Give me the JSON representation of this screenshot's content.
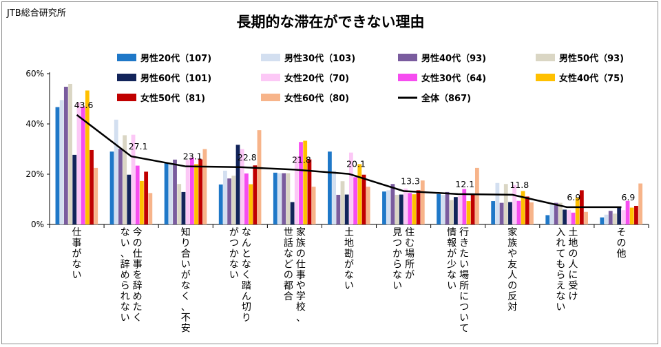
{
  "credit": "JTB総合研究所",
  "chart_data": {
    "type": "bar",
    "title": "長期的な滞在ができない理由",
    "ylim": [
      0,
      60
    ],
    "yticks": [
      "0%",
      "20%",
      "40%",
      "60%"
    ],
    "grid": false,
    "legend_position": "top",
    "categories": [
      [
        "仕事がない"
      ],
      [
        "今の仕事を辞めたく",
        "ない、辞められない"
      ],
      [
        "知り合いがなく、不安"
      ],
      [
        "なんとなく踏ん切り",
        "がつかない"
      ],
      [
        "家族の仕事や学校、",
        "世話などの都合"
      ],
      [
        "土地勘がない"
      ],
      [
        "住む場所が",
        "見つからない"
      ],
      [
        "行きたい場所について",
        "情報が少ない"
      ],
      [
        "家族や友人の反対"
      ],
      [
        "土地の人に受け",
        "入れてもらえない"
      ],
      [
        "その他"
      ]
    ],
    "series": [
      {
        "name": "男性20代（107)",
        "color": "#1f78c8",
        "values": [
          46.7,
          29.0,
          24.5,
          15.9,
          20.6,
          29.0,
          13.1,
          12.1,
          9.3,
          3.7,
          2.8
        ]
      },
      {
        "name": "男性30代（103)",
        "color": "#d3dff0",
        "values": [
          49.5,
          41.7,
          24.3,
          21.4,
          20.4,
          21.4,
          13.6,
          11.7,
          16.5,
          7.8,
          3.9
        ]
      },
      {
        "name": "男性40代（93)",
        "color": "#7a5c9e",
        "values": [
          54.8,
          30.1,
          25.8,
          18.3,
          20.4,
          11.8,
          16.1,
          12.9,
          8.6,
          8.6,
          5.4
        ]
      },
      {
        "name": "男性50代（93)",
        "color": "#dad6c4",
        "values": [
          55.9,
          35.5,
          16.1,
          19.4,
          20.4,
          17.2,
          11.8,
          9.7,
          16.1,
          8.6,
          4.3
        ]
      },
      {
        "name": "男性60代（101)",
        "color": "#12245a",
        "values": [
          27.7,
          19.8,
          12.9,
          31.7,
          8.9,
          11.9,
          11.9,
          10.9,
          8.9,
          5.9,
          6.9
        ]
      },
      {
        "name": "女性20代（70)",
        "color": "#fcc8f6",
        "values": [
          48.6,
          35.7,
          25.7,
          30.0,
          27.1,
          28.6,
          14.3,
          11.4,
          15.7,
          5.7,
          5.7
        ]
      },
      {
        "name": "女性30代（64)",
        "color": "#f64df0",
        "values": [
          46.9,
          23.4,
          26.6,
          20.3,
          32.8,
          18.8,
          12.5,
          14.1,
          9.4,
          4.7,
          9.4
        ]
      },
      {
        "name": "女性40代（75)",
        "color": "#ffc000",
        "values": [
          53.3,
          17.3,
          24.0,
          16.0,
          33.3,
          24.0,
          12.0,
          9.3,
          13.3,
          10.7,
          6.7
        ]
      },
      {
        "name": "女性50代（81)",
        "color": "#c00000",
        "values": [
          29.6,
          21.0,
          25.9,
          23.5,
          25.9,
          19.8,
          13.6,
          12.3,
          11.1,
          13.6,
          7.4
        ]
      },
      {
        "name": "女性60代（80)",
        "color": "#f7b48a",
        "values": [
          22.5,
          12.5,
          30.0,
          37.5,
          15.0,
          15.0,
          17.5,
          22.5,
          8.8,
          5.0,
          16.3
        ]
      }
    ],
    "total": {
      "name": "全体（867)",
      "color": "#000000",
      "values": [
        43.6,
        27.1,
        23.1,
        22.8,
        21.8,
        20.1,
        13.3,
        12.1,
        11.8,
        6.9,
        6.9
      ]
    }
  }
}
